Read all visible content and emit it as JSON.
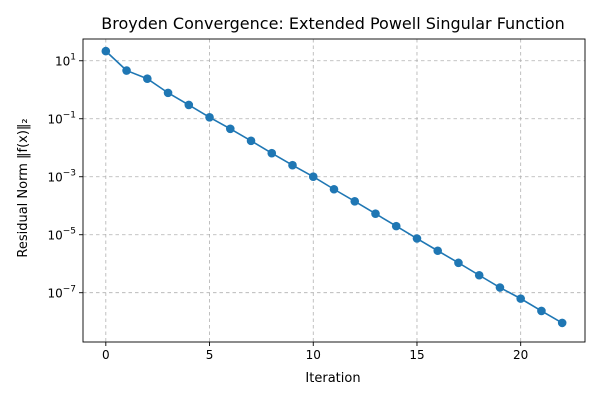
{
  "chart_data": {
    "type": "line",
    "title": "Broyden Convergence: Extended Powell Singular Function",
    "xlabel": "Iteration",
    "ylabel": "Residual Norm ‖f(x)‖₂",
    "x": [
      0,
      1,
      2,
      3,
      4,
      5,
      6,
      7,
      8,
      9,
      10,
      11,
      12,
      13,
      14,
      15,
      16,
      17,
      18,
      19,
      20,
      21,
      22
    ],
    "series": [
      {
        "values": [
          21.5,
          4.6,
          2.4,
          0.78,
          0.3,
          0.112,
          0.045,
          0.0173,
          0.0065,
          0.0025,
          0.001,
          0.00037,
          0.000142,
          5.3e-05,
          1.98e-05,
          7.4e-06,
          2.8e-06,
          1.07e-06,
          4e-07,
          1.51e-07,
          6.25e-08,
          2.35e-08,
          9.1e-09
        ]
      }
    ],
    "xlim": [
      -1.1,
      23.1
    ],
    "ylim_log10": [
      -8.7,
      1.75
    ],
    "yscale": "log",
    "xticks": [
      0,
      5,
      10,
      15,
      20
    ],
    "yticks": [
      {
        "exp": 1,
        "label": "10",
        "sup": "1"
      },
      {
        "exp": -1,
        "label": "10",
        "sup": "−1"
      },
      {
        "exp": -3,
        "label": "10",
        "sup": "−3"
      },
      {
        "exp": -5,
        "label": "10",
        "sup": "−5"
      },
      {
        "exp": -7,
        "label": "10",
        "sup": "−7"
      }
    ],
    "grid": true,
    "legend": "none",
    "colors": {
      "line": "#1f77b4",
      "marker": "#1f77b4",
      "grid": "#b0b0b0",
      "axis": "#000000"
    }
  }
}
